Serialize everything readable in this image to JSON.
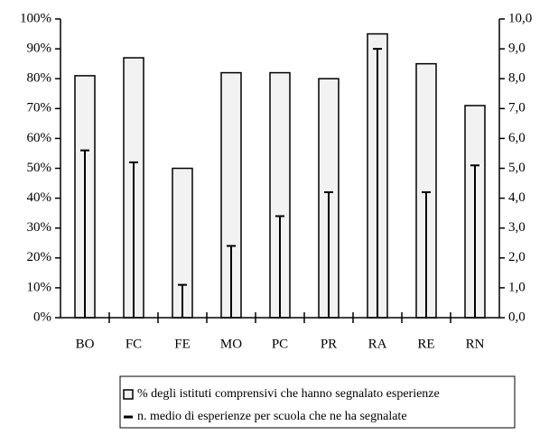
{
  "chart_data": {
    "type": "bar",
    "categories": [
      "BO",
      "FC",
      "FE",
      "MO",
      "PC",
      "PR",
      "RA",
      "RE",
      "RN"
    ],
    "series": [
      {
        "name": "% degli istituti comprensivi che hanno segnalato esperienze",
        "type": "bar",
        "color": "#f2f2f2",
        "values": [
          81,
          87,
          50,
          82,
          82,
          80,
          95,
          85,
          71
        ]
      },
      {
        "name": "n. medio di esperienze per scuola che ne ha segnalate",
        "type": "drop-line",
        "axis": "y2",
        "color": "#000000",
        "values": [
          5.6,
          5.2,
          1.1,
          2.4,
          3.4,
          4.2,
          9.0,
          4.2,
          5.1
        ]
      }
    ],
    "ylim": [
      0,
      100
    ],
    "yticks": [
      {
        "value": 0,
        "label": "0%"
      },
      {
        "value": 10,
        "label": "10%"
      },
      {
        "value": 20,
        "label": "20%"
      },
      {
        "value": 30,
        "label": "30%"
      },
      {
        "value": 40,
        "label": "40%"
      },
      {
        "value": 50,
        "label": "50%"
      },
      {
        "value": 60,
        "label": "60%"
      },
      {
        "value": 70,
        "label": "70%"
      },
      {
        "value": 80,
        "label": "80%"
      },
      {
        "value": 90,
        "label": "90%"
      },
      {
        "value": 100,
        "label": "100%"
      }
    ],
    "y2lim": [
      0,
      10
    ],
    "y2ticks": [
      {
        "value": 0,
        "label": "0,0"
      },
      {
        "value": 1,
        "label": "1,0"
      },
      {
        "value": 2,
        "label": "2,0"
      },
      {
        "value": 3,
        "label": "3,0"
      },
      {
        "value": 4,
        "label": "4,0"
      },
      {
        "value": 5,
        "label": "5,0"
      },
      {
        "value": 6,
        "label": "6,0"
      },
      {
        "value": 7,
        "label": "7,0"
      },
      {
        "value": 8,
        "label": "8,0"
      },
      {
        "value": 9,
        "label": "9,0"
      },
      {
        "value": 10,
        "label": "10,0"
      }
    ],
    "grid": false,
    "legend": "bottom"
  }
}
